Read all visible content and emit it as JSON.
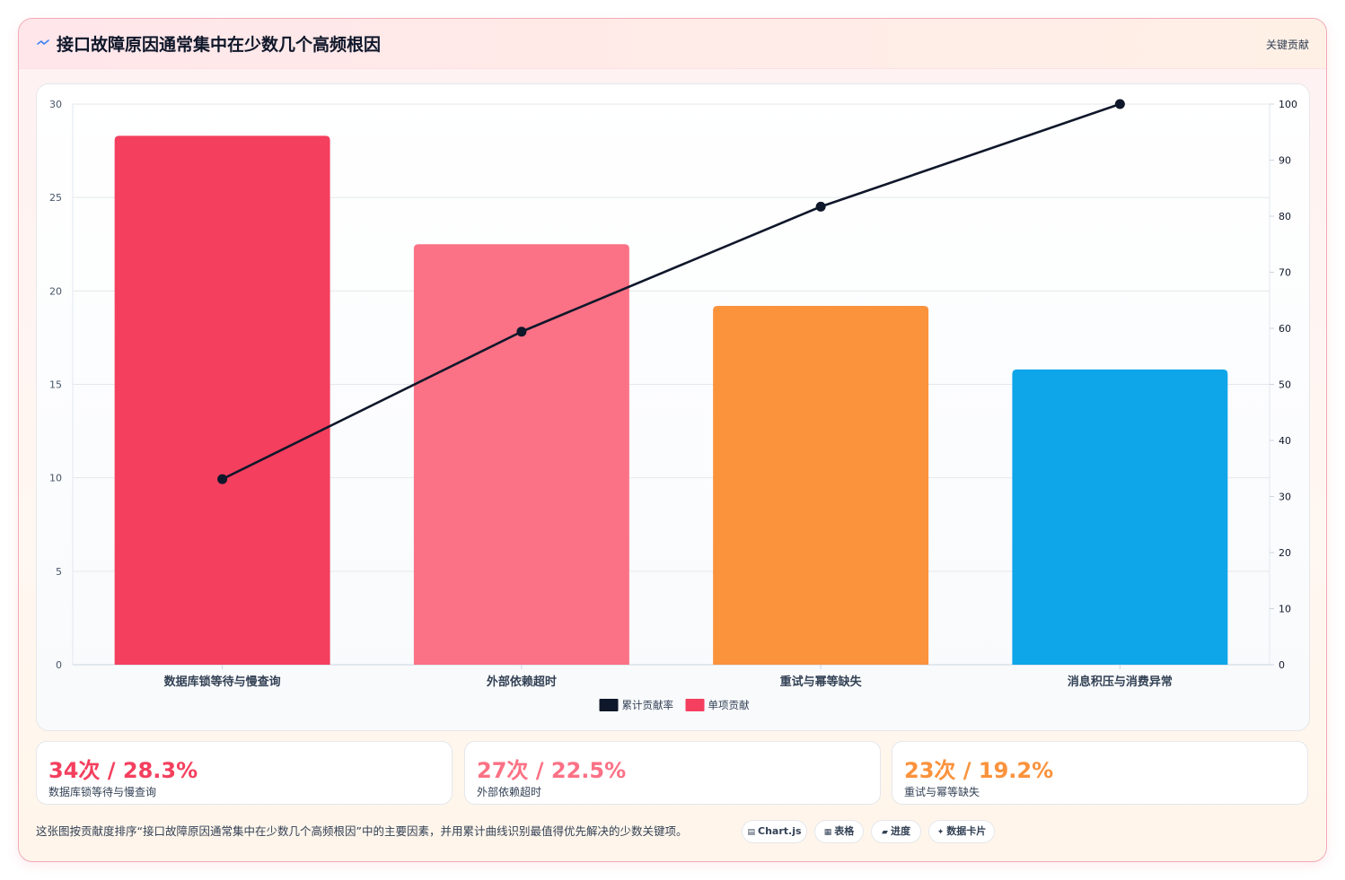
{
  "header": {
    "title": "接口故障原因通常集中在少数几个高频根因",
    "badge": "关键贡献"
  },
  "colors": {
    "accent": "#f43f5e",
    "line": "#0f172a",
    "bars": [
      "#f43f5e",
      "#fb7185",
      "#fb923c",
      "#0ea5e9"
    ]
  },
  "chart_data": {
    "type": "bar",
    "categories": [
      "数据库锁等待与慢查询",
      "外部依赖超时",
      "重试与幂等缺失",
      "消息积压与消费异常"
    ],
    "series": [
      {
        "name": "单项贡献",
        "type": "bar",
        "axis": "left",
        "values": [
          28.3,
          22.5,
          19.2,
          15.8
        ]
      },
      {
        "name": "累计贡献率",
        "type": "line",
        "axis": "right",
        "values": [
          33.1,
          59.4,
          81.7,
          100
        ]
      }
    ],
    "y_left": {
      "min": 0,
      "max": 30,
      "ticks": [
        0,
        5,
        10,
        15,
        20,
        25,
        30
      ]
    },
    "y_right": {
      "min": 0,
      "max": 100,
      "ticks": [
        0,
        10,
        20,
        30,
        40,
        50,
        60,
        70,
        80,
        90,
        100
      ]
    },
    "grid": true,
    "legend": {
      "position": "bottom",
      "items": [
        "累计贡献率",
        "单项贡献"
      ]
    }
  },
  "stats": [
    {
      "value": "34次 / 28.3%",
      "label": "数据库锁等待与慢查询",
      "color": "#f43f5e"
    },
    {
      "value": "27次 / 22.5%",
      "label": "外部依赖超时",
      "color": "#fb7185"
    },
    {
      "value": "23次 / 19.2%",
      "label": "重试与幂等缺失",
      "color": "#fb923c"
    }
  ],
  "footer": {
    "note": "这张图按贡献度排序“接口故障原因通常集中在少数几个高频根因”中的主要因素，并用累计曲线识别最值得优先解决的少数关键项。",
    "chips": [
      {
        "icon": "chart-icon",
        "label": "Chart.js"
      },
      {
        "icon": "table-icon",
        "label": "表格"
      },
      {
        "icon": "progress-icon",
        "label": "进度"
      },
      {
        "icon": "sparkle-icon",
        "label": "数据卡片"
      }
    ]
  }
}
